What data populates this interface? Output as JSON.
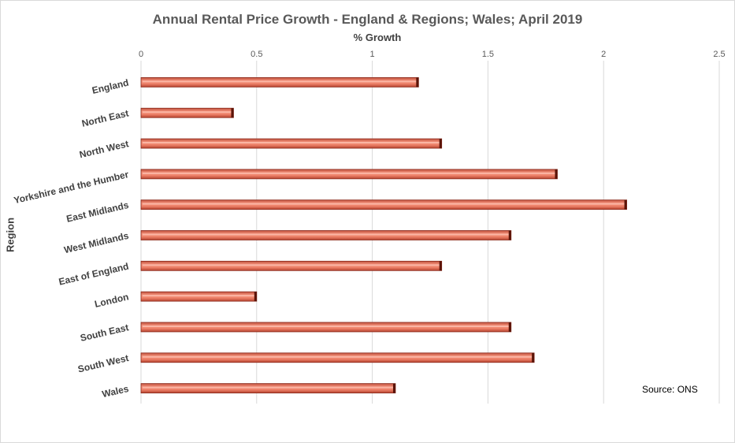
{
  "chart_data": {
    "type": "bar",
    "orientation": "horizontal",
    "title": "Annual Rental Price Growth - England & Regions; Wales; April 2019",
    "xlabel": "% Growth",
    "ylabel": "Region",
    "categories": [
      "England",
      "North East",
      "North West",
      "Yorkshire and the Humber",
      "East Midlands",
      "West Midlands",
      "East of England",
      "London",
      "South East",
      "South West",
      "Wales"
    ],
    "values": [
      1.2,
      0.4,
      1.3,
      1.8,
      2.1,
      1.6,
      1.3,
      0.5,
      1.6,
      1.7,
      1.1
    ],
    "xlim": [
      0,
      2.5
    ],
    "xticks": [
      "0",
      "0.5",
      "1",
      "1.5",
      "2",
      "2.5"
    ],
    "xtick_values": [
      0,
      0.5,
      1,
      1.5,
      2,
      2.5
    ],
    "x_axis_position": "top",
    "grid": "vertical",
    "legend": "none",
    "bar_color": "#E8705A",
    "bar_edge_color": "#8B2A1C",
    "annotation": "Source: ONS"
  }
}
